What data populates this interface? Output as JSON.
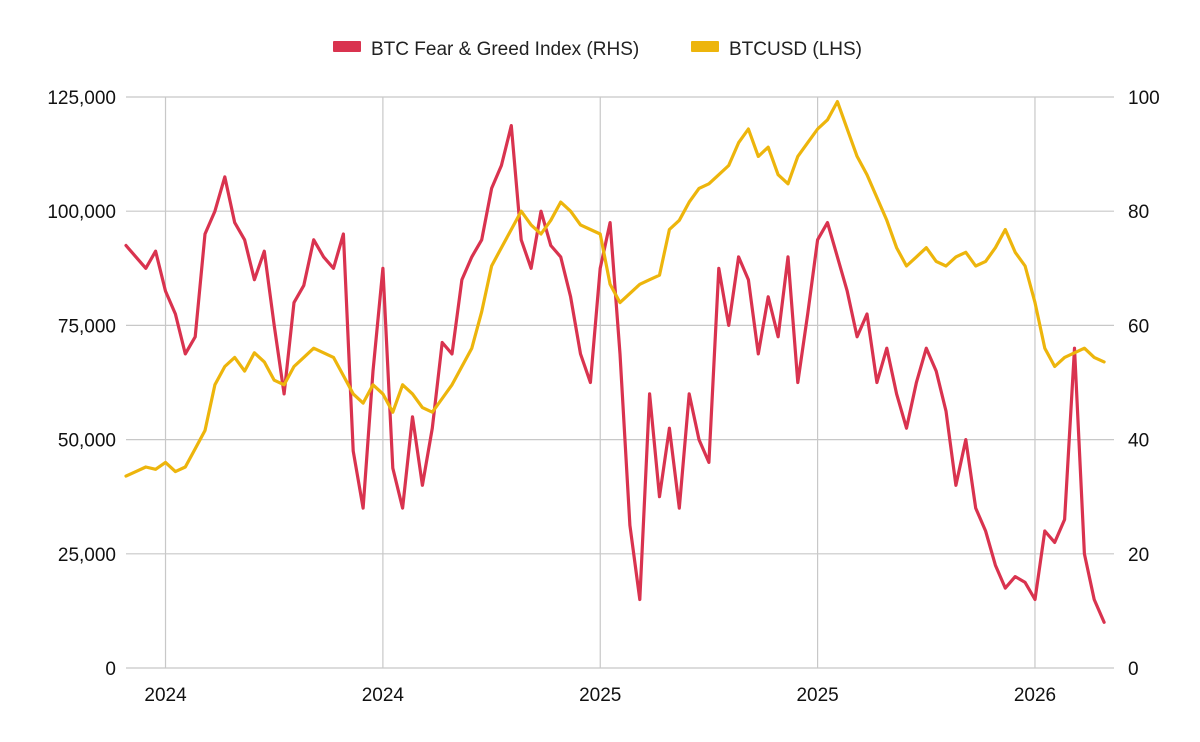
{
  "chart_data": {
    "type": "line",
    "title": "",
    "legend_position": "top-center",
    "grid": true,
    "x_tick_labels": [
      "2024",
      "2024",
      "2025",
      "2025",
      "2026"
    ],
    "x_range_index": [
      0,
      100
    ],
    "x_tick_index": [
      4,
      26,
      48,
      70,
      92
    ],
    "y_left": {
      "label": "BTCUSD (LHS)",
      "range": [
        0,
        125000
      ],
      "ticks": [
        0,
        25000,
        50000,
        75000,
        100000,
        125000
      ],
      "tick_labels": [
        "0",
        "25,000",
        "50,000",
        "75,000",
        "100,000",
        "125,000"
      ]
    },
    "y_right": {
      "label": "BTC Fear & Greed Index (RHS)",
      "range": [
        0,
        100
      ],
      "ticks": [
        0,
        20,
        40,
        60,
        80,
        100
      ],
      "tick_labels": [
        "0",
        "20",
        "40",
        "60",
        "80",
        "100"
      ]
    },
    "series": [
      {
        "name": "BTC Fear & Greed Index (RHS)",
        "axis": "right",
        "color": "#d9334f",
        "x": [
          0,
          1,
          2,
          3,
          4,
          5,
          6,
          7,
          8,
          9,
          10,
          11,
          12,
          13,
          14,
          15,
          16,
          17,
          18,
          19,
          20,
          21,
          22,
          23,
          24,
          25,
          26,
          27,
          28,
          29,
          30,
          31,
          32,
          33,
          34,
          35,
          36,
          37,
          38,
          39,
          40,
          41,
          42,
          43,
          44,
          45,
          46,
          47,
          48,
          49,
          50,
          51,
          52,
          53,
          54,
          55,
          56,
          57,
          58,
          59,
          60,
          61,
          62,
          63,
          64,
          65,
          66,
          67,
          68,
          69,
          70,
          71,
          72,
          73,
          74,
          75,
          76,
          77,
          78,
          79,
          80,
          81,
          82,
          83,
          84,
          85,
          86,
          87,
          88,
          89,
          90,
          91,
          92,
          93,
          94,
          95,
          96,
          97,
          98,
          99
        ],
        "values": [
          74,
          72,
          70,
          73,
          66,
          62,
          55,
          58,
          76,
          80,
          86,
          78,
          75,
          68,
          73,
          60,
          48,
          64,
          67,
          75,
          72,
          70,
          76,
          38,
          28,
          52,
          70,
          35,
          28,
          44,
          32,
          42,
          57,
          55,
          68,
          72,
          75,
          84,
          88,
          95,
          75,
          70,
          80,
          74,
          72,
          65,
          55,
          50,
          70,
          78,
          55,
          25,
          12,
          48,
          30,
          42,
          28,
          48,
          40,
          36,
          70,
          60,
          72,
          68,
          55,
          65,
          58,
          72,
          50,
          62,
          75,
          78,
          72,
          66,
          58,
          62,
          50,
          56,
          48,
          42,
          50,
          56,
          52,
          45,
          32,
          40,
          28,
          24,
          18,
          14,
          16,
          15,
          12,
          24,
          22,
          26,
          56,
          20,
          12,
          8
        ]
      },
      {
        "name": "BTCUSD (LHS)",
        "axis": "left",
        "color": "#edb50c",
        "x": [
          0,
          1,
          2,
          3,
          4,
          5,
          6,
          7,
          8,
          9,
          10,
          11,
          12,
          13,
          14,
          15,
          16,
          17,
          18,
          19,
          20,
          21,
          22,
          23,
          24,
          25,
          26,
          27,
          28,
          29,
          30,
          31,
          32,
          33,
          34,
          35,
          36,
          37,
          38,
          39,
          40,
          41,
          42,
          43,
          44,
          45,
          46,
          47,
          48,
          49,
          50,
          51,
          52,
          53,
          54,
          55,
          56,
          57,
          58,
          59,
          60,
          61,
          62,
          63,
          64,
          65,
          66,
          67,
          68,
          69,
          70,
          71,
          72,
          73,
          74,
          75,
          76,
          77,
          78,
          79,
          80,
          81,
          82,
          83,
          84,
          85,
          86,
          87,
          88,
          89,
          90,
          91,
          92,
          93,
          94,
          95,
          96,
          97,
          98,
          99
        ],
        "values": [
          42000,
          43000,
          44000,
          43500,
          45000,
          43000,
          44000,
          48000,
          52000,
          62000,
          66000,
          68000,
          65000,
          69000,
          67000,
          63000,
          62000,
          66000,
          68000,
          70000,
          69000,
          68000,
          64000,
          60000,
          58000,
          62000,
          60000,
          56000,
          62000,
          60000,
          57000,
          56000,
          59000,
          62000,
          66000,
          70000,
          78000,
          88000,
          92000,
          96000,
          100000,
          97000,
          95000,
          98000,
          102000,
          100000,
          97000,
          96000,
          95000,
          84000,
          80000,
          82000,
          84000,
          85000,
          86000,
          96000,
          98000,
          102000,
          105000,
          106000,
          108000,
          110000,
          115000,
          118000,
          112000,
          114000,
          108000,
          106000,
          112000,
          115000,
          118000,
          120000,
          124000,
          118000,
          112000,
          108000,
          103000,
          98000,
          92000,
          88000,
          90000,
          92000,
          89000,
          88000,
          90000,
          91000,
          88000,
          89000,
          92000,
          96000,
          91000,
          88000,
          80000,
          70000,
          66000,
          68000,
          69000,
          70000,
          68000,
          67000
        ]
      }
    ]
  }
}
